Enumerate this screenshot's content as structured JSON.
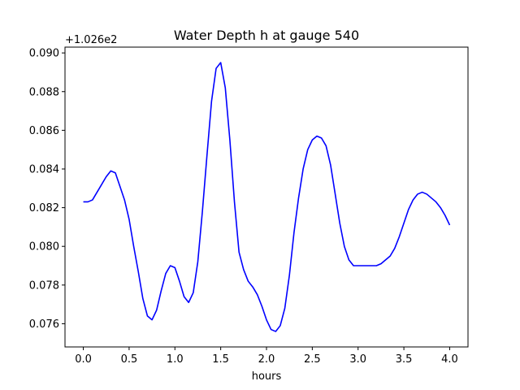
{
  "chart_data": {
    "type": "line",
    "title": "Water Depth h at gauge 540",
    "xlabel": "hours",
    "ylabel": "",
    "offset_label": "+1.026e2",
    "xlim": [
      -0.2,
      4.2
    ],
    "ylim": [
      0.0748,
      0.0903
    ],
    "x_ticks": [
      0.0,
      0.5,
      1.0,
      1.5,
      2.0,
      2.5,
      3.0,
      3.5,
      4.0
    ],
    "x_tick_labels": [
      "0.0",
      "0.5",
      "1.0",
      "1.5",
      "2.0",
      "2.5",
      "3.0",
      "3.5",
      "4.0"
    ],
    "y_ticks": [
      0.076,
      0.078,
      0.08,
      0.082,
      0.084,
      0.086,
      0.088,
      0.09
    ],
    "y_tick_labels": [
      "0.076",
      "0.078",
      "0.080",
      "0.082",
      "0.084",
      "0.086",
      "0.088",
      "0.090"
    ],
    "grid": false,
    "series": [
      {
        "color": "#0000ff",
        "x": [
          0.0,
          0.05,
          0.1,
          0.15,
          0.2,
          0.25,
          0.3,
          0.35,
          0.4,
          0.45,
          0.5,
          0.55,
          0.6,
          0.65,
          0.7,
          0.75,
          0.8,
          0.85,
          0.9,
          0.95,
          1.0,
          1.05,
          1.1,
          1.15,
          1.2,
          1.25,
          1.3,
          1.35,
          1.4,
          1.45,
          1.5,
          1.55,
          1.6,
          1.65,
          1.7,
          1.75,
          1.8,
          1.85,
          1.9,
          1.95,
          2.0,
          2.05,
          2.1,
          2.15,
          2.2,
          2.25,
          2.3,
          2.35,
          2.4,
          2.45,
          2.5,
          2.55,
          2.6,
          2.65,
          2.7,
          2.75,
          2.8,
          2.85,
          2.9,
          2.95,
          3.0,
          3.05,
          3.1,
          3.15,
          3.2,
          3.25,
          3.3,
          3.35,
          3.4,
          3.45,
          3.5,
          3.55,
          3.6,
          3.65,
          3.7,
          3.75,
          3.8,
          3.85,
          3.9,
          3.95,
          4.0
        ],
        "y": [
          0.0823,
          0.0823,
          0.0824,
          0.0828,
          0.0832,
          0.0836,
          0.0839,
          0.0838,
          0.0831,
          0.0824,
          0.0814,
          0.08,
          0.0787,
          0.0773,
          0.0764,
          0.0762,
          0.0767,
          0.0777,
          0.0786,
          0.079,
          0.0789,
          0.0782,
          0.0774,
          0.0771,
          0.0776,
          0.0792,
          0.0818,
          0.0847,
          0.0875,
          0.0892,
          0.0895,
          0.0882,
          0.0855,
          0.0823,
          0.0797,
          0.0788,
          0.0782,
          0.0779,
          0.0775,
          0.0769,
          0.0762,
          0.0757,
          0.0756,
          0.0759,
          0.0768,
          0.0785,
          0.0807,
          0.0825,
          0.084,
          0.085,
          0.0855,
          0.0857,
          0.0856,
          0.0852,
          0.0842,
          0.0827,
          0.0812,
          0.08,
          0.0793,
          0.079,
          0.079,
          0.079,
          0.079,
          0.079,
          0.079,
          0.0791,
          0.0793,
          0.0795,
          0.0799,
          0.0805,
          0.0812,
          0.0819,
          0.0824,
          0.0827,
          0.0828,
          0.0827,
          0.0825,
          0.0823,
          0.082,
          0.0816,
          0.0811
        ]
      }
    ]
  }
}
